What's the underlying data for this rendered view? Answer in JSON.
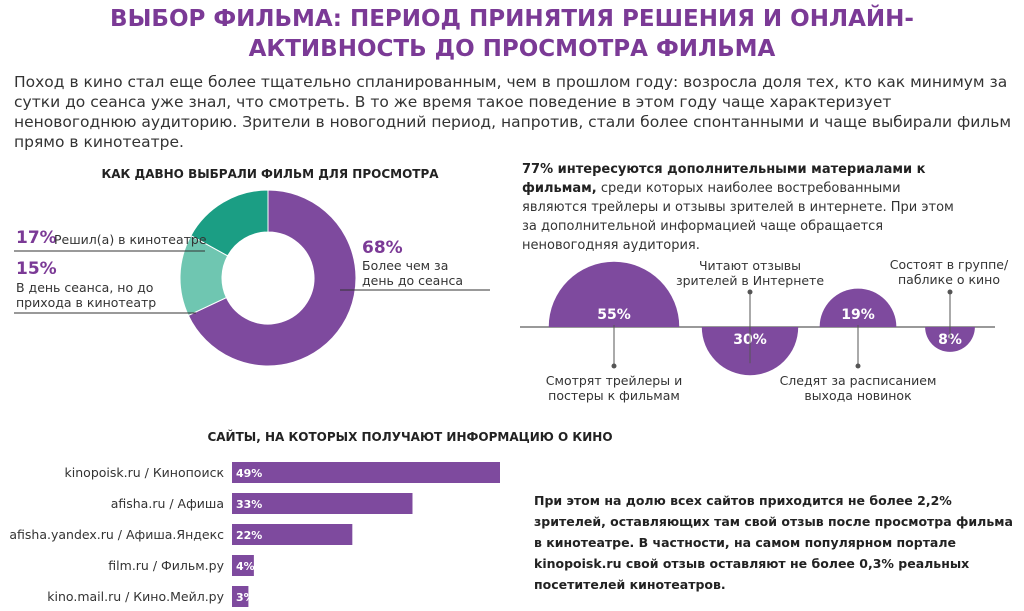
{
  "header": {
    "title": "ВЫБОР ФИЛЬМА: ПЕРИОД ПРИНЯТИЯ РЕШЕНИЯ И ОНЛАЙН-АКТИВНОСТЬ ДО ПРОСМОТРА ФИЛЬМА"
  },
  "intro": "Поход в кино стал еще более тщательно спланированным, чем в прошлом году: возросла доля тех, кто как минимум за сутки до сеанса уже знал, что смотреть. В то же время такое поведение в этом году чаще характеризует неновогоднюю аудиторию. Зрители в новогодний период, напротив, стали более спонтанными и чаще выбирали фильм прямо в кинотеатре.",
  "info_note": {
    "lead": "77% интересуются дополнительными материалами к фильмам,",
    "text": "среди которых наиболее востребованными являются трейлеры и отзывы зрителей в интернете. При этом за дополнительной информацией чаще обращается неновогодняя аудитория."
  },
  "sites_note": "При этом на долю всех сайтов приходится не более 2,2% зрителей, оставляющих там свой отзыв после просмотра фильма в кинотеатре. В частности, на самом популярном портале kinopoisk.ru свой отзыв оставляют не более 0,3% реальных посетителей кинотеатров.",
  "chart_data": [
    {
      "type": "pie",
      "title": "КАК ДАВНО ВЫБРАЛИ ФИЛЬМ ДЛЯ ПРОСМОТРА",
      "categories": [
        "Более чем за день до сеанса",
        "В день сеанса, но до прихода в кинотеатр",
        "Решил(а) в кинотеатре"
      ],
      "values": [
        68,
        15,
        17
      ],
      "value_labels": [
        "68%",
        "15%",
        "17%"
      ],
      "colors": [
        "#7e4a9e",
        "#6fc6b1",
        "#1b9e84"
      ]
    },
    {
      "type": "semicircle",
      "categories": [
        "Смотрят трейлеры и постеры к фильмам",
        "Читают отзывы зрителей в Интернете",
        "Следят за расписанием выхода новинок",
        "Состоят в группе/ паблике о кино"
      ],
      "values": [
        55,
        30,
        19,
        8
      ],
      "value_labels": [
        "55%",
        "30%",
        "19%",
        "8%"
      ],
      "color": "#7e4a9e"
    },
    {
      "type": "hbar",
      "title": "САЙТЫ, НА КОТОРЫХ ПОЛУЧАЮТ ИНФОРМАЦИЮ О КИНО",
      "categories": [
        "kinopoisk.ru / Кинопоиск",
        "afisha.ru / Афиша",
        "afisha.yandex.ru / Афиша.Яндекс",
        "film.ru / Фильм.ру",
        "kino.mail.ru / Кино.Мейл.ру"
      ],
      "values": [
        49,
        33,
        22,
        4,
        3
      ],
      "value_labels": [
        "49%",
        "33%",
        "22%",
        "4%",
        "3%"
      ],
      "color": "#7e4a9e"
    }
  ]
}
